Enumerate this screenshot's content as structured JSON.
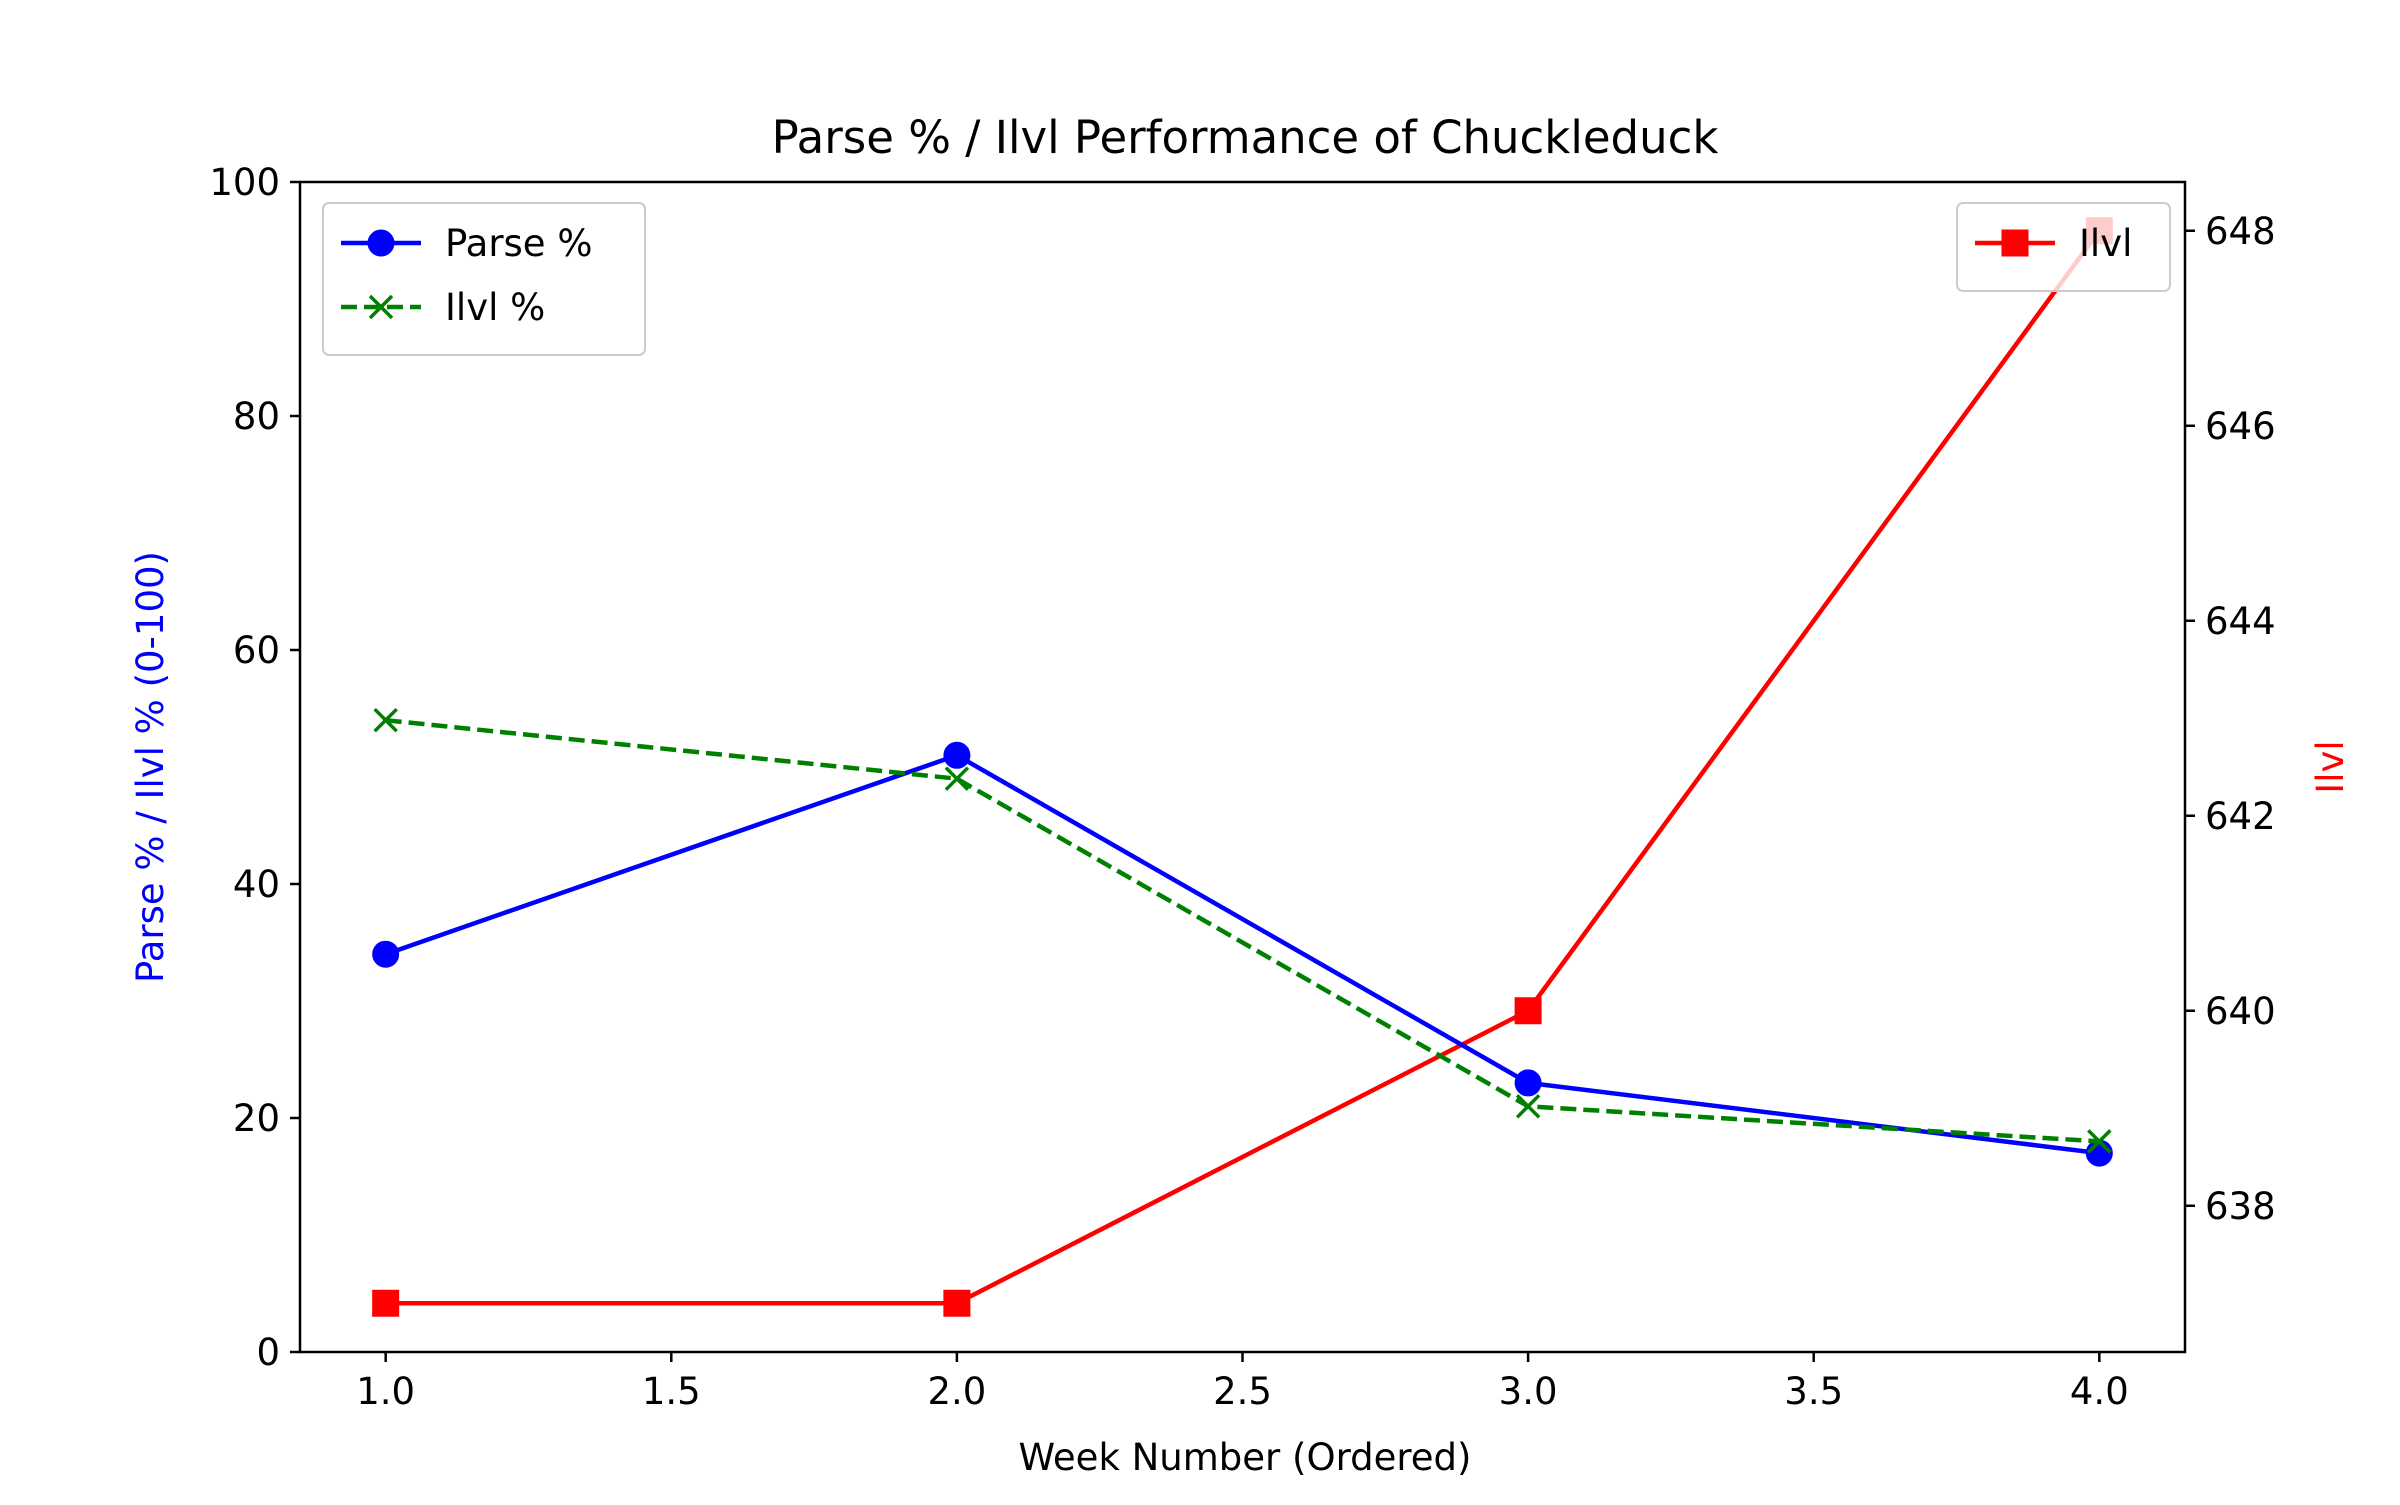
{
  "chart_data": {
    "type": "line",
    "title": "Parse % / Ilvl Performance of Chuckleduck",
    "xlabel": "Week Number (Ordered)",
    "ylabel_left": "Parse % / Ilvl % (0-100)",
    "ylabel_right": "Ilvl",
    "x": [
      1.0,
      2.0,
      3.0,
      4.0
    ],
    "xlim": [
      0.85,
      4.15
    ],
    "ylim_left": [
      0,
      100
    ],
    "ylim_right": [
      636.5,
      648.5
    ],
    "xticks": [
      "1.0",
      "1.5",
      "2.0",
      "2.5",
      "3.0",
      "3.5",
      "4.0"
    ],
    "yticks_left": [
      "0",
      "20",
      "40",
      "60",
      "80",
      "100"
    ],
    "yticks_right": [
      "638",
      "640",
      "642",
      "644",
      "646",
      "648"
    ],
    "grid": false,
    "series": [
      {
        "name": "Parse %",
        "axis": "left",
        "values": [
          34,
          51,
          23,
          17
        ],
        "color": "#0000ff",
        "marker": "circle",
        "line_style": "solid"
      },
      {
        "name": "Ilvl %",
        "axis": "left",
        "values": [
          54,
          49,
          21,
          18
        ],
        "color": "#008000",
        "marker": "x",
        "line_style": "dashed"
      },
      {
        "name": "Ilvl",
        "axis": "right",
        "values": [
          637,
          637,
          640,
          648
        ],
        "color": "#ff0000",
        "marker": "square",
        "line_style": "solid"
      }
    ],
    "legends": [
      {
        "position": "upper-left",
        "entries": [
          "Parse %",
          "Ilvl %"
        ]
      },
      {
        "position": "upper-right",
        "entries": [
          "Ilvl"
        ]
      }
    ]
  }
}
